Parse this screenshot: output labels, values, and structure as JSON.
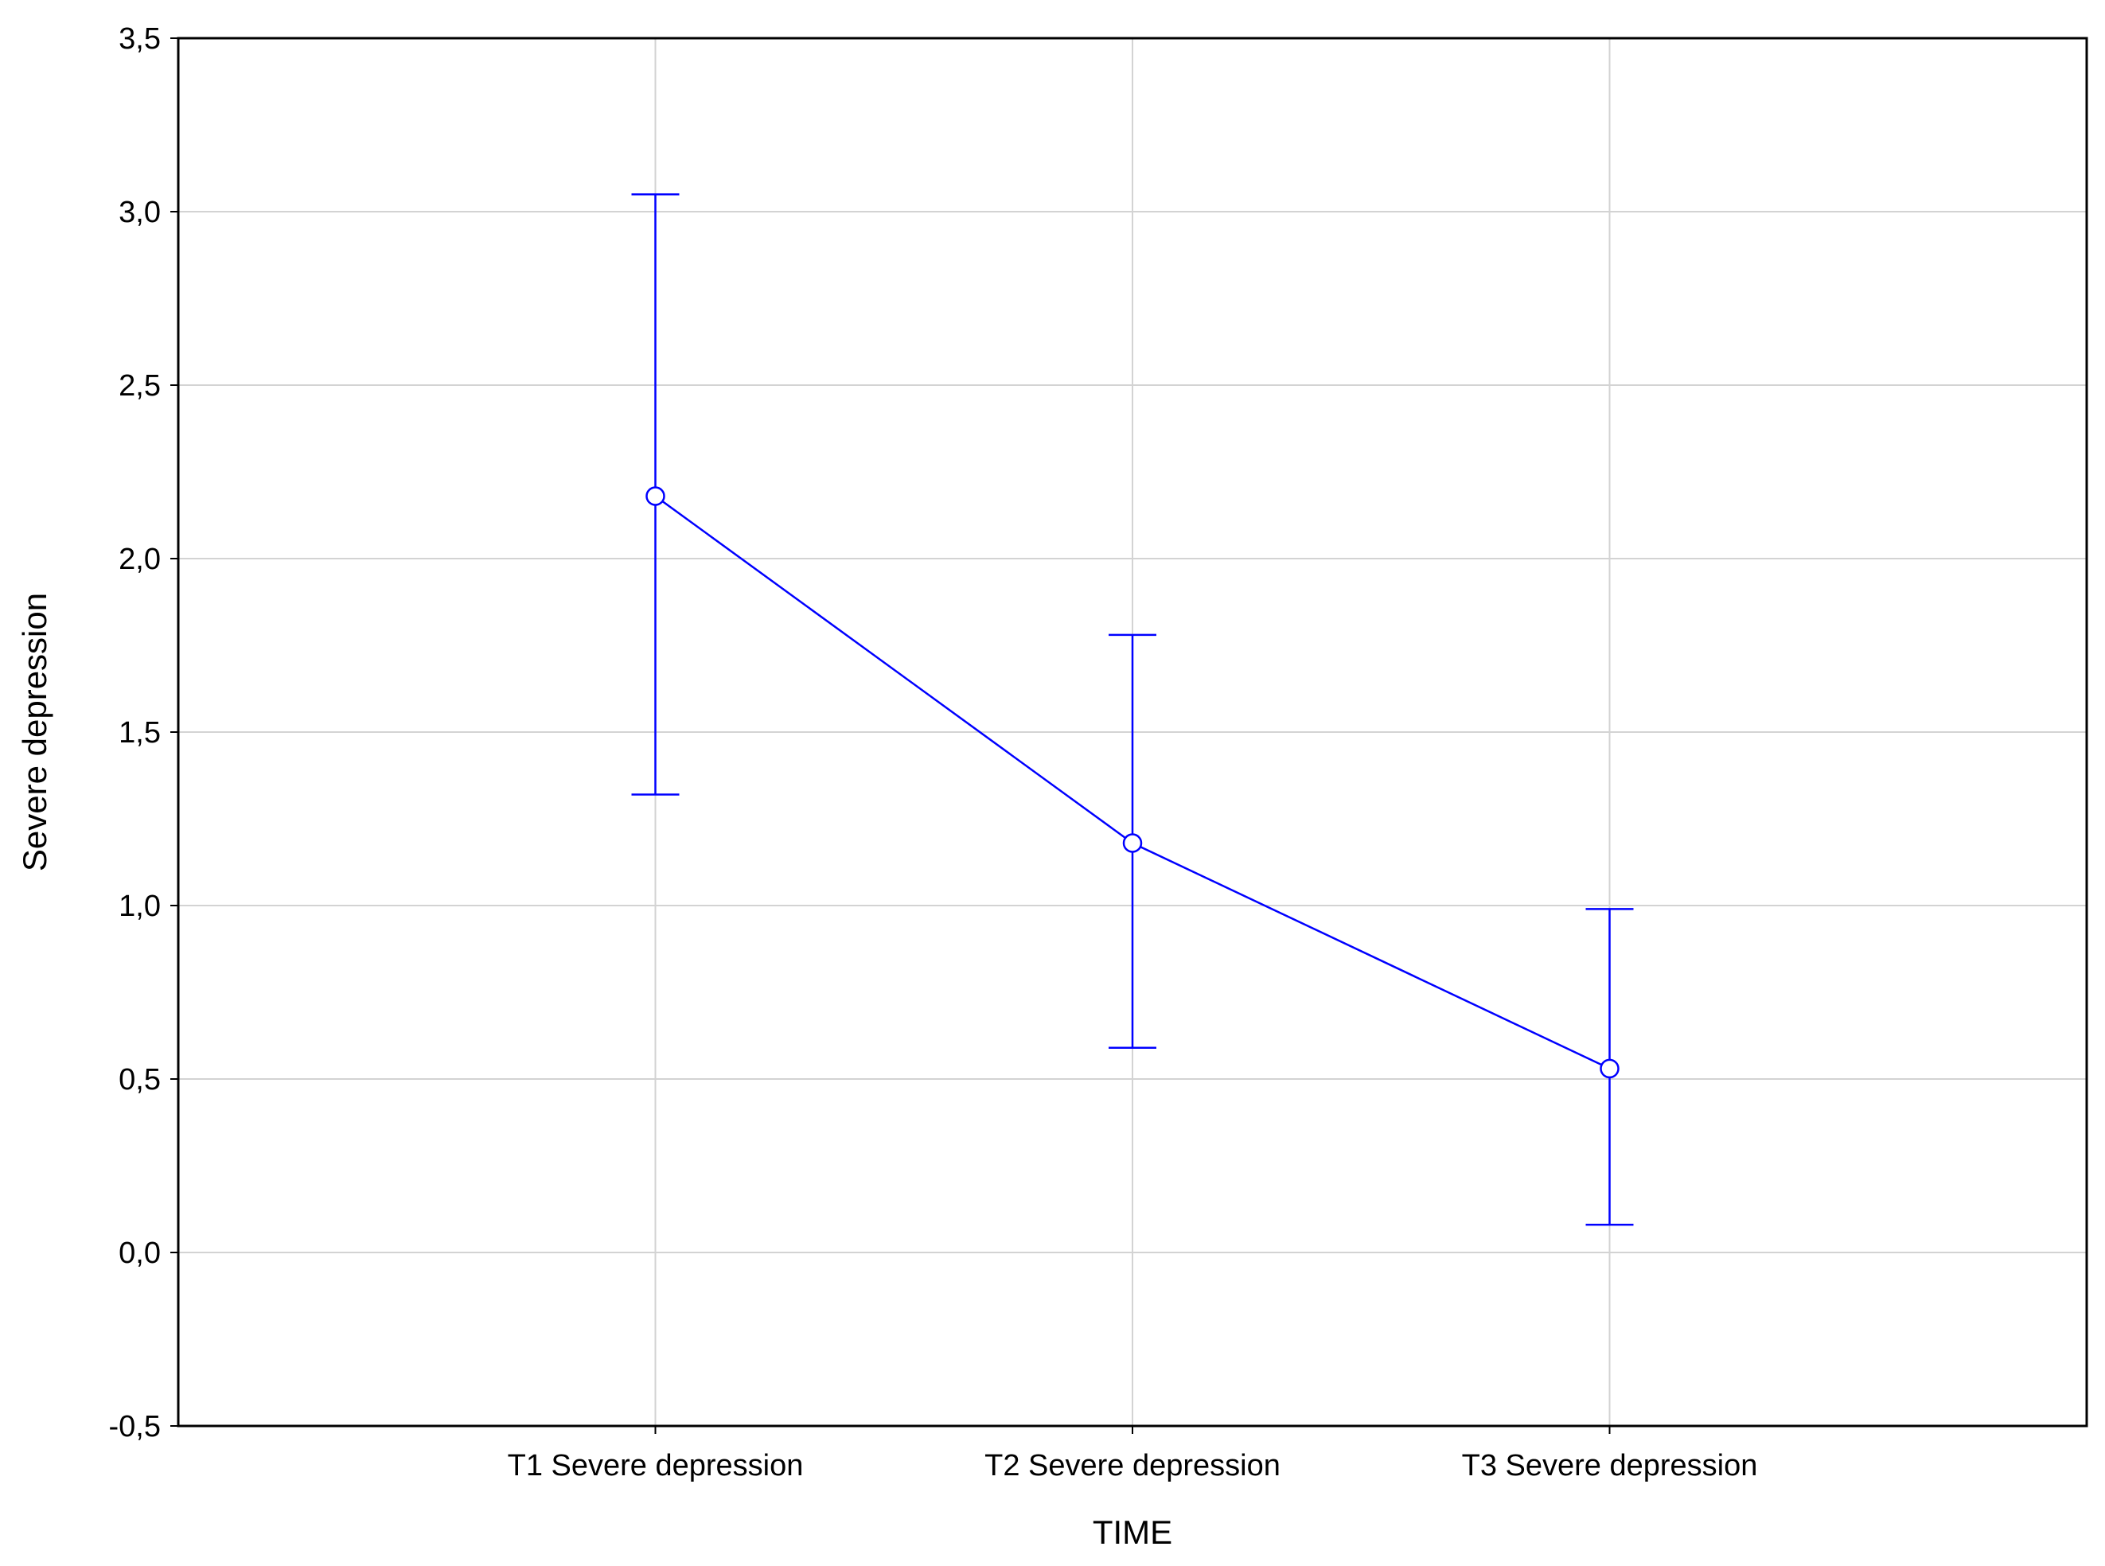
{
  "chart_data": {
    "type": "line",
    "title": "",
    "xlabel": "TIME",
    "ylabel": "Severe depression",
    "categories": [
      "T1 Severe depression",
      "T2 Severe depression",
      "T3 Severe depression"
    ],
    "series": [
      {
        "values": [
          2.18,
          1.18,
          0.53
        ],
        "error_lower": [
          1.32,
          0.59,
          0.08
        ],
        "error_upper": [
          3.05,
          1.78,
          0.99
        ],
        "color": "#0000ff",
        "marker": "open-circle"
      }
    ],
    "ylim": [
      -0.5,
      3.5
    ],
    "yticks": [
      -0.5,
      0.0,
      0.5,
      1.0,
      1.5,
      2.0,
      2.5,
      3.0,
      3.5
    ],
    "ytick_labels": [
      "-0,5",
      "0,0",
      "0,5",
      "1,0",
      "1,5",
      "2,0",
      "2,5",
      "3,0",
      "3,5"
    ],
    "grid": true,
    "legend": "none"
  }
}
